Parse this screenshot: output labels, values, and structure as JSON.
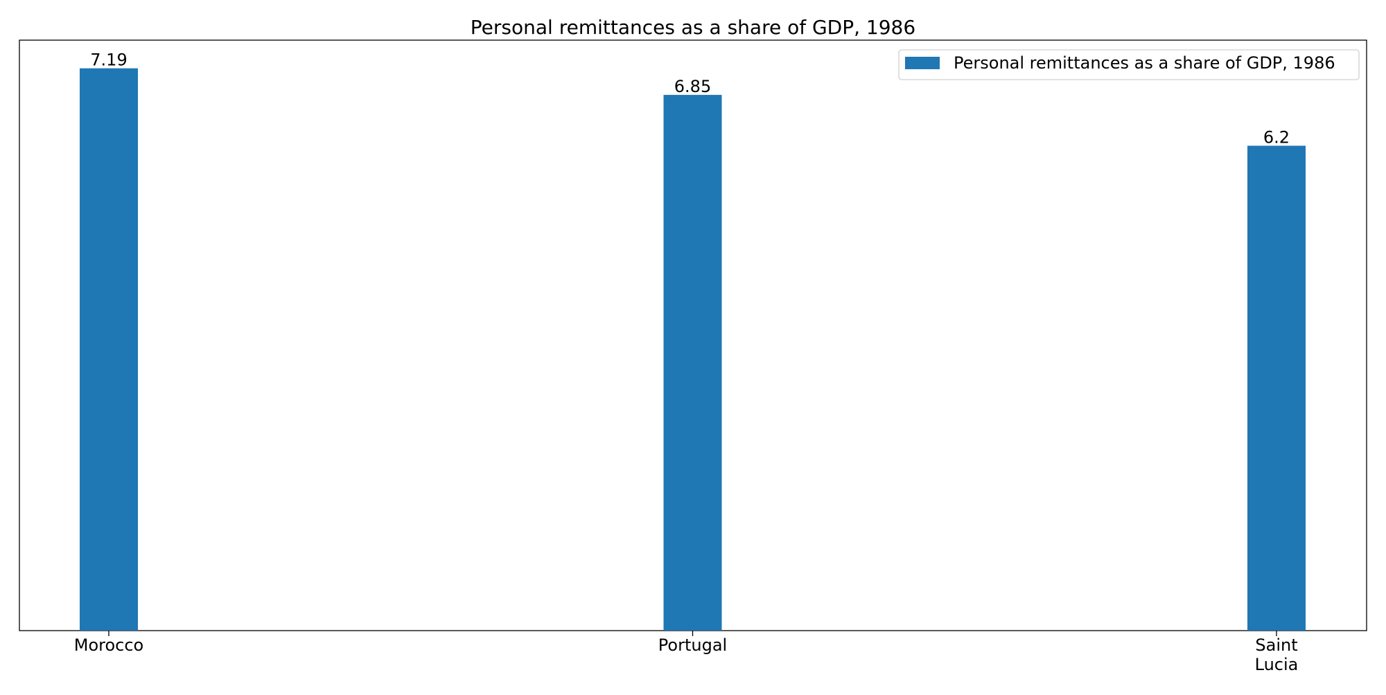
{
  "chart_data": {
    "type": "bar",
    "title": "Personal remittances as a share of GDP, 1986",
    "categories": [
      "Morocco",
      "Portugal",
      "Saint Lucia"
    ],
    "category_labels": [
      [
        "Morocco"
      ],
      [
        "Portugal"
      ],
      [
        "Saint",
        "Lucia"
      ]
    ],
    "series": [
      {
        "name": "Personal remittances as a share of GDP, 1986",
        "values": [
          7.19,
          6.85,
          6.2
        ],
        "value_labels": [
          "7.19",
          "6.85",
          "6.2"
        ],
        "color": "#1f77b4"
      }
    ],
    "ylim": [
      0,
      7.55
    ],
    "xlabel": "",
    "ylabel": "",
    "grid": false,
    "y_axis_visible": false,
    "legend_position": "top-right"
  }
}
